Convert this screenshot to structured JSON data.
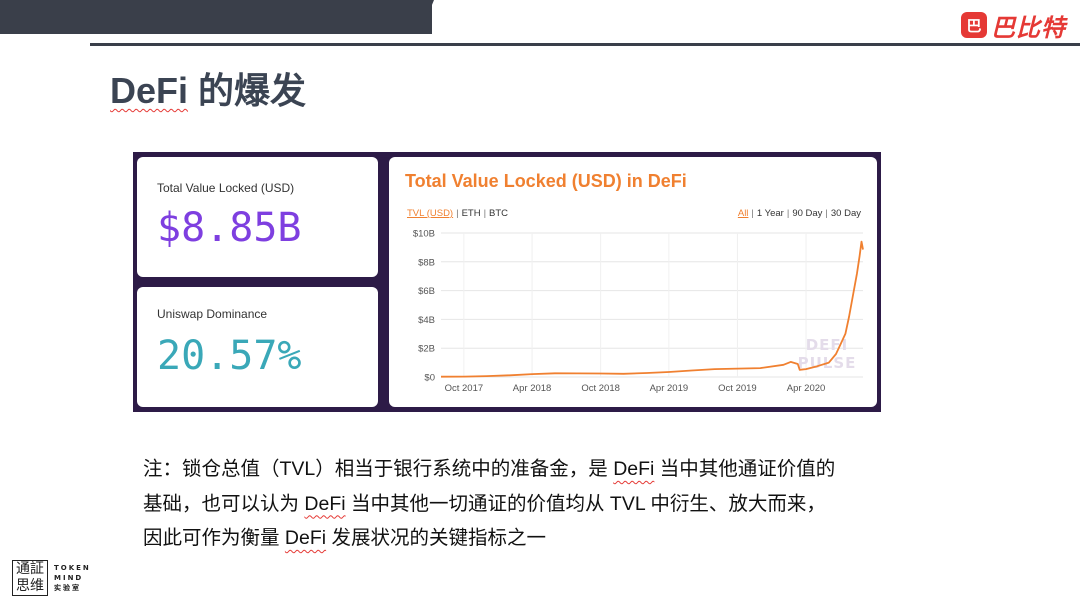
{
  "slide": {
    "title_en": "DeFi",
    "title_cn": " 的爆发",
    "note_lines": [
      [
        "注：锁仓总值（TVL）相当于银行系统中的准备金，是 ",
        "DeFi",
        " 当中其他通证价值的"
      ],
      [
        "基础，也可以认为 ",
        "DeFi",
        " 当中其他一切通证的价值均从 TVL 中衍生、放大而来，"
      ],
      [
        "因此可作为衡量 ",
        "DeFi",
        " 发展状况的关键指标之一"
      ]
    ]
  },
  "brand": {
    "badge": "巴",
    "name": "巴比特"
  },
  "footer_logo": {
    "cn": "通証思维",
    "en_lines": [
      "TOKEN",
      "MIND",
      "实验室"
    ]
  },
  "cards": {
    "tvl": {
      "label": "Total Value Locked (USD)",
      "value": "$8.85B",
      "color": "#7e3fe0"
    },
    "uniswap": {
      "label": "Uniswap Dominance",
      "value": "20.57%",
      "color": "#3aa8b8"
    }
  },
  "chart_card": {
    "title": "Total Value Locked (USD) in DeFi",
    "tabs": [
      "TVL (USD)",
      "ETH",
      "BTC"
    ],
    "ranges": [
      "All",
      "1 Year",
      "90 Day",
      "30 Day"
    ],
    "watermark": [
      "DEFI",
      "PULSE"
    ]
  },
  "chart_data": {
    "type": "line",
    "title": "Total Value Locked (USD) in DeFi",
    "xlabel": "",
    "ylabel": "",
    "x_ticks": [
      "Oct 2017",
      "Apr 2018",
      "Oct 2018",
      "Apr 2019",
      "Oct 2019",
      "Apr 2020"
    ],
    "y_ticks": [
      "$0",
      "$2B",
      "$4B",
      "$6B",
      "$8B",
      "$10B"
    ],
    "ylim": [
      0,
      10
    ],
    "xlim": [
      "2017-08-01",
      "2020-08-31"
    ],
    "grid": true,
    "color": "#f08030",
    "series": [
      {
        "points": [
          [
            "2017-08-01",
            0.02
          ],
          [
            "2017-10-01",
            0.03
          ],
          [
            "2017-12-01",
            0.06
          ],
          [
            "2018-02-01",
            0.12
          ],
          [
            "2018-04-01",
            0.2
          ],
          [
            "2018-06-01",
            0.26
          ],
          [
            "2018-08-01",
            0.25
          ],
          [
            "2018-10-01",
            0.24
          ],
          [
            "2018-12-01",
            0.22
          ],
          [
            "2019-02-01",
            0.28
          ],
          [
            "2019-04-01",
            0.35
          ],
          [
            "2019-06-01",
            0.45
          ],
          [
            "2019-08-01",
            0.55
          ],
          [
            "2019-10-01",
            0.58
          ],
          [
            "2019-12-01",
            0.62
          ],
          [
            "2020-02-01",
            0.85
          ],
          [
            "2020-02-20",
            1.05
          ],
          [
            "2020-03-10",
            0.9
          ],
          [
            "2020-03-15",
            0.5
          ],
          [
            "2020-04-01",
            0.55
          ],
          [
            "2020-05-01",
            0.75
          ],
          [
            "2020-06-01",
            1.0
          ],
          [
            "2020-06-20",
            1.6
          ],
          [
            "2020-07-01",
            2.2
          ],
          [
            "2020-07-15",
            3.0
          ],
          [
            "2020-07-25",
            4.2
          ],
          [
            "2020-08-05",
            5.8
          ],
          [
            "2020-08-15",
            7.2
          ],
          [
            "2020-08-22",
            8.4
          ],
          [
            "2020-08-27",
            9.4
          ],
          [
            "2020-08-31",
            8.85
          ]
        ]
      }
    ]
  }
}
